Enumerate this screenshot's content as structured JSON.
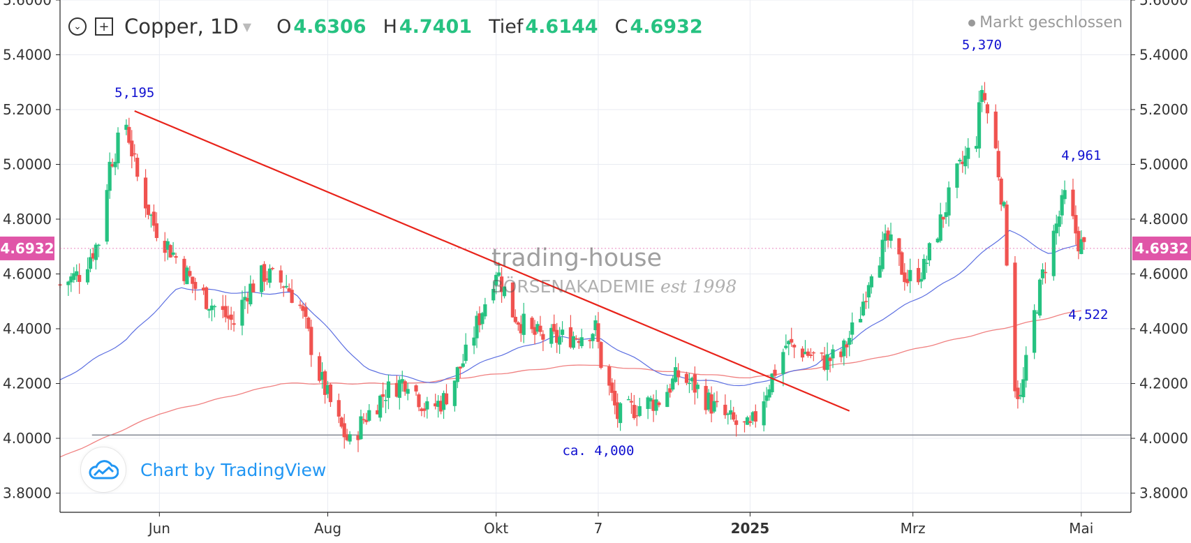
{
  "header": {
    "symbol": "Copper, 1D",
    "o_label": "O",
    "o_value": "4.6306",
    "h_label": "H",
    "h_value": "4.7401",
    "l_label": "Tief",
    "l_value": "4.6144",
    "c_label": "C",
    "c_value": "4.6932",
    "market_status": "Markt geschlossen"
  },
  "branding": {
    "tradingview": "Chart by TradingView",
    "watermark_line1": "trading-house",
    "watermark_line2": "BÖRSENAKADEMIE",
    "watermark_est": "est 1998"
  },
  "chart_data": {
    "type": "candlestick",
    "ylim": [
      3.73,
      5.6
    ],
    "y_ticks": [
      "3.8000",
      "4.0000",
      "4.2000",
      "4.4000",
      "4.6000",
      "4.8000",
      "5.0000",
      "5.2000",
      "5.4000",
      "5.6000"
    ],
    "x_ticks": [
      {
        "label": "Jun",
        "d": "2024-06-01"
      },
      {
        "label": "Aug",
        "d": "2024-08-01"
      },
      {
        "label": "Okt",
        "d": "2024-10-01"
      },
      {
        "label": "7",
        "d": "2024-11-07"
      },
      {
        "label": "2025",
        "d": "2025-01-01"
      },
      {
        "label": "Mrz",
        "d": "2025-03-01"
      },
      {
        "label": "Mai",
        "d": "2025-05-01"
      }
    ],
    "x_range": [
      "2024-04-26",
      "2025-05-19"
    ],
    "last_price": "4.6932",
    "colors": {
      "up": "#26c281",
      "down": "#f05350",
      "trend": "#e8231a",
      "sma_short": "#5b6ee1",
      "sma_long": "#f08080",
      "support": "#8a8f98",
      "annot": "#1010d0",
      "price_tag": "#e056a8"
    },
    "keypoints": [
      [
        "2024-04-26",
        4.56
      ],
      [
        "2024-05-03",
        4.6
      ],
      [
        "2024-05-10",
        4.72
      ],
      [
        "2024-05-14",
        5.0
      ],
      [
        "2024-05-20",
        5.15
      ],
      [
        "2024-05-24",
        4.95
      ],
      [
        "2024-05-30",
        4.78
      ],
      [
        "2024-06-07",
        4.66
      ],
      [
        "2024-06-14",
        4.55
      ],
      [
        "2024-06-21",
        4.48
      ],
      [
        "2024-06-28",
        4.42
      ],
      [
        "2024-07-03",
        4.54
      ],
      [
        "2024-07-09",
        4.6
      ],
      [
        "2024-07-17",
        4.56
      ],
      [
        "2024-07-22",
        4.48
      ],
      [
        "2024-07-29",
        4.23
      ],
      [
        "2024-08-05",
        4.05
      ],
      [
        "2024-08-09",
        3.98
      ],
      [
        "2024-08-14",
        4.07
      ],
      [
        "2024-08-22",
        4.17
      ],
      [
        "2024-08-30",
        4.22
      ],
      [
        "2024-09-06",
        4.1
      ],
      [
        "2024-09-12",
        4.14
      ],
      [
        "2024-09-20",
        4.3
      ],
      [
        "2024-09-27",
        4.5
      ],
      [
        "2024-10-01",
        4.62
      ],
      [
        "2024-10-07",
        4.46
      ],
      [
        "2024-10-14",
        4.38
      ],
      [
        "2024-10-22",
        4.36
      ],
      [
        "2024-10-31",
        4.38
      ],
      [
        "2024-11-06",
        4.4
      ],
      [
        "2024-11-08",
        4.28
      ],
      [
        "2024-11-14",
        4.08
      ],
      [
        "2024-11-22",
        4.12
      ],
      [
        "2024-11-29",
        4.14
      ],
      [
        "2024-12-06",
        4.23
      ],
      [
        "2024-12-13",
        4.18
      ],
      [
        "2024-12-20",
        4.1
      ],
      [
        "2024-12-27",
        4.05
      ],
      [
        "2025-01-01",
        4.03
      ],
      [
        "2025-01-07",
        4.18
      ],
      [
        "2025-01-14",
        4.34
      ],
      [
        "2025-01-20",
        4.32
      ],
      [
        "2025-01-27",
        4.28
      ],
      [
        "2025-02-03",
        4.3
      ],
      [
        "2025-02-10",
        4.46
      ],
      [
        "2025-02-14",
        4.63
      ],
      [
        "2025-02-20",
        4.72
      ],
      [
        "2025-02-27",
        4.58
      ],
      [
        "2025-03-05",
        4.62
      ],
      [
        "2025-03-10",
        4.76
      ],
      [
        "2025-03-17",
        4.96
      ],
      [
        "2025-03-24",
        5.1
      ],
      [
        "2025-03-26",
        5.28
      ],
      [
        "2025-03-31",
        5.05
      ],
      [
        "2025-04-03",
        4.82
      ],
      [
        "2025-04-07",
        4.2
      ],
      [
        "2025-04-09",
        4.14
      ],
      [
        "2025-04-14",
        4.45
      ],
      [
        "2025-04-18",
        4.64
      ],
      [
        "2025-04-25",
        4.88
      ],
      [
        "2025-04-30",
        4.72
      ],
      [
        "2025-05-02",
        4.69
      ]
    ],
    "trendline": [
      [
        "2024-05-23",
        5.195
      ],
      [
        "2025-02-06",
        4.1
      ]
    ],
    "support": {
      "value": 4.012,
      "from": "2024-05-01",
      "to": "2025-05-19"
    },
    "annotations": [
      {
        "text": "5,195",
        "d": "2024-05-23",
        "v": 5.195
      },
      {
        "text": "5,370",
        "d": "2025-03-26",
        "v": 5.37
      },
      {
        "text": "4,961",
        "d": "2025-05-01",
        "v": 4.961
      },
      {
        "text": "4,522",
        "d": "2025-05-01",
        "v": 4.522
      },
      {
        "text": "ca. 4,000",
        "d": "2024-11-07",
        "v": 4.0
      }
    ],
    "sma_short_keypoints": [
      [
        "2024-04-26",
        4.21
      ],
      [
        "2024-05-20",
        4.36
      ],
      [
        "2024-06-08",
        4.55
      ],
      [
        "2024-07-01",
        4.53
      ],
      [
        "2024-07-20",
        4.53
      ],
      [
        "2024-08-15",
        4.25
      ],
      [
        "2024-09-10",
        4.2
      ],
      [
        "2024-10-01",
        4.3
      ],
      [
        "2024-10-22",
        4.37
      ],
      [
        "2024-11-08",
        4.36
      ],
      [
        "2024-12-01",
        4.23
      ],
      [
        "2024-12-31",
        4.19
      ],
      [
        "2025-01-25",
        4.27
      ],
      [
        "2025-02-20",
        4.45
      ],
      [
        "2025-03-15",
        4.58
      ],
      [
        "2025-04-05",
        4.76
      ],
      [
        "2025-04-20",
        4.67
      ],
      [
        "2025-05-02",
        4.72
      ]
    ],
    "sma_long_keypoints": [
      [
        "2024-04-26",
        3.93
      ],
      [
        "2024-06-01",
        4.09
      ],
      [
        "2024-07-15",
        4.2
      ],
      [
        "2024-09-01",
        4.2
      ],
      [
        "2024-11-01",
        4.27
      ],
      [
        "2025-01-01",
        4.22
      ],
      [
        "2025-02-15",
        4.29
      ],
      [
        "2025-03-20",
        4.37
      ],
      [
        "2025-05-02",
        4.47
      ]
    ]
  }
}
